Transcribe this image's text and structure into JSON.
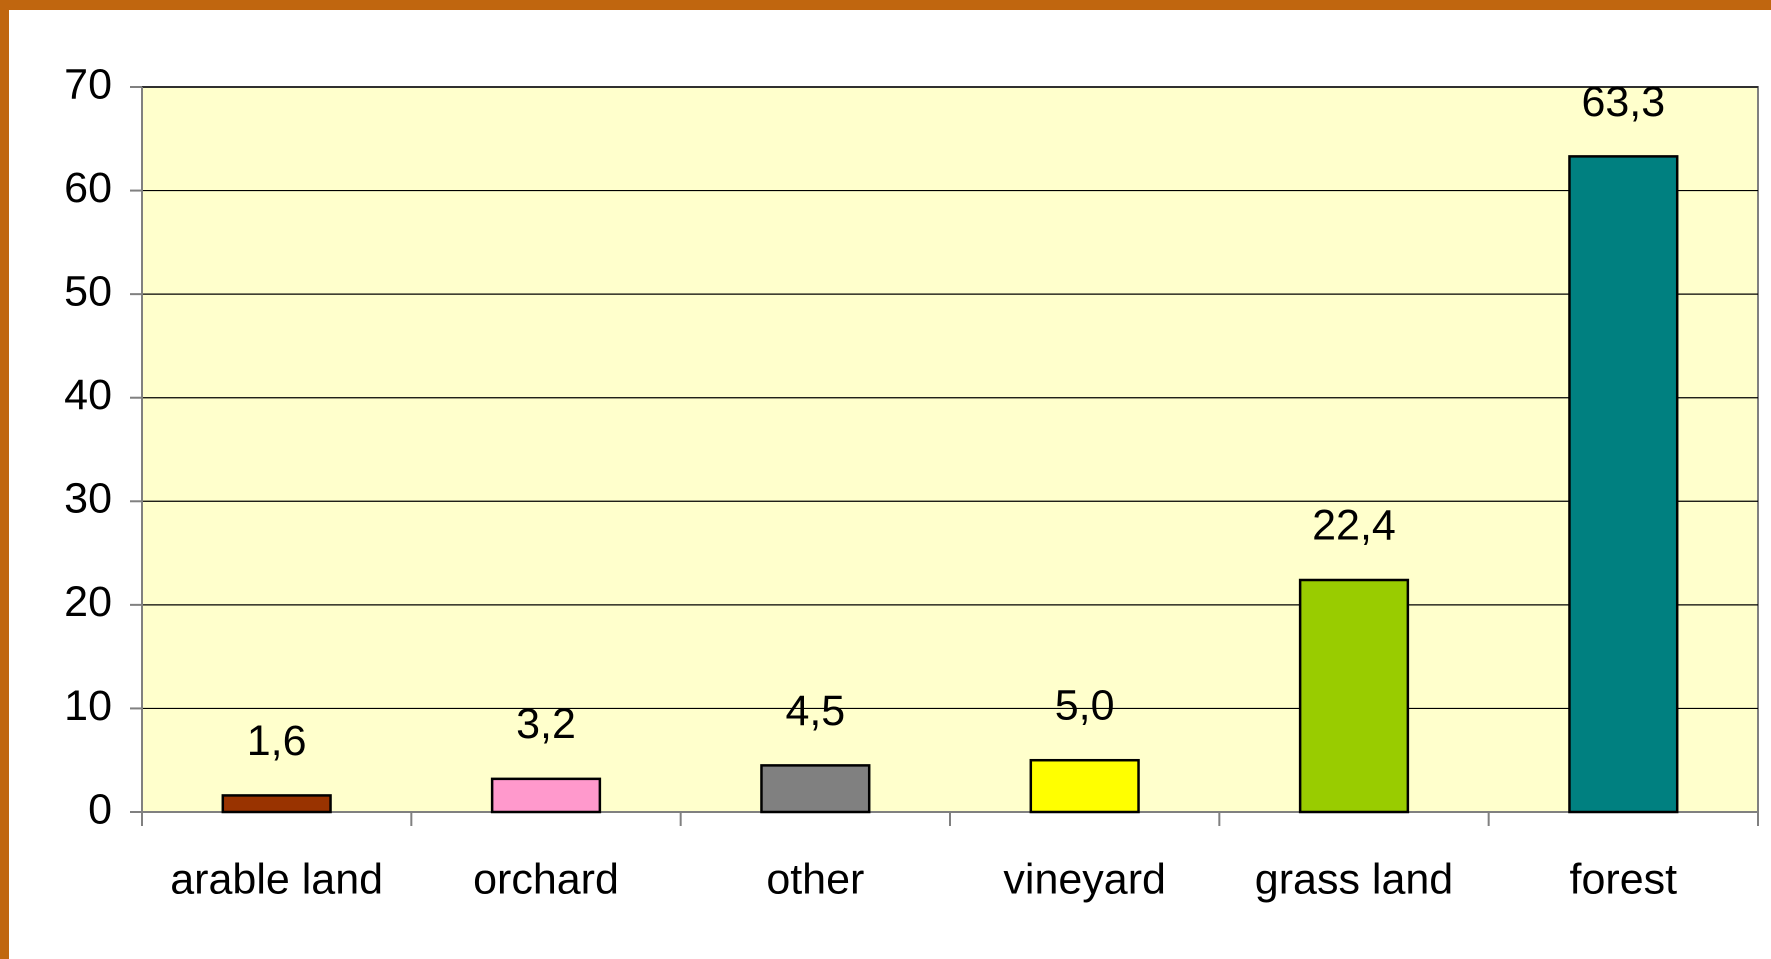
{
  "chart_data": {
    "type": "bar",
    "categories": [
      "arable land",
      "orchard",
      "other",
      "vineyard",
      "grass land",
      "forest"
    ],
    "values": [
      1.6,
      3.2,
      4.5,
      5.0,
      22.4,
      63.3
    ],
    "value_labels": [
      "1,6",
      "3,2",
      "4,5",
      "5,0",
      "22,4",
      "63,3"
    ],
    "colors": [
      "#993300",
      "#ff99cc",
      "#808080",
      "#ffff00",
      "#99cc00",
      "#008080"
    ],
    "ylim": [
      0,
      70
    ],
    "yticks": [
      0,
      10,
      20,
      30,
      40,
      50,
      60,
      70
    ],
    "grid": true
  }
}
